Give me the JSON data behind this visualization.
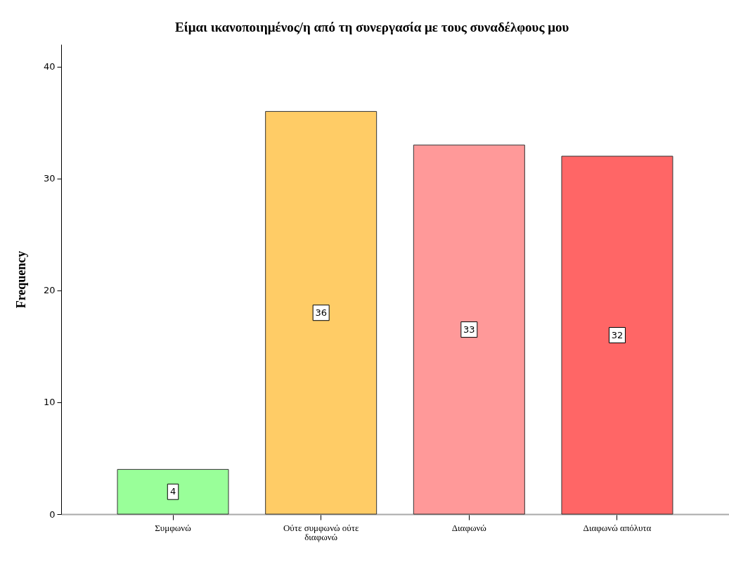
{
  "chart_data": {
    "type": "bar",
    "title": "Είμαι ικανοποιημένος/η από τη συνεργασία με τους συναδέλφους μου",
    "ylabel": "Frequency",
    "categories": [
      "Συμφωνώ",
      "Ούτε συμφωνώ ούτε διαφωνώ",
      "Διαφωνώ",
      "Διαφωνώ απόλυτα"
    ],
    "values": [
      4,
      36,
      33,
      32
    ],
    "colors": [
      "#99ff99",
      "#ffcc66",
      "#ff9999",
      "#ff6666"
    ],
    "ylim": [
      0,
      42
    ],
    "yticks": [
      0,
      10,
      20,
      30,
      40
    ],
    "data_labels": true
  }
}
